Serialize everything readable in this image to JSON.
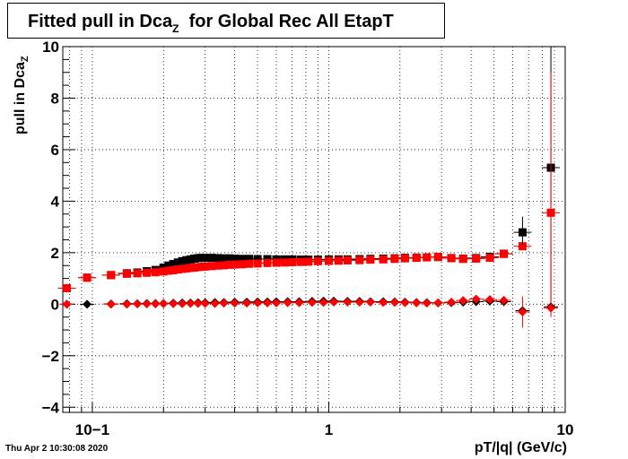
{
  "title": {
    "main": "Fitted pull in Dca",
    "sub": "Z",
    "rest": "for Global Rec All EtapT"
  },
  "timestamp": "Thu Apr  2 10:30:08 2020",
  "axes": {
    "ylabel_main": "pull in Dca",
    "ylabel_sub": "Z",
    "xlabel": "pT/|q| (GeV/c)"
  },
  "colors": {
    "series_black": "#000000",
    "series_red": "#ff0000",
    "grid": "#000000"
  },
  "chart_data": {
    "type": "scatter",
    "xscale": "log",
    "xlim": [
      0.075,
      10
    ],
    "ylim": [
      -4.2,
      10
    ],
    "grid": true,
    "xticks": [
      {
        "value": 0.1,
        "label": "10−1"
      },
      {
        "value": 1,
        "label": "1"
      },
      {
        "value": 10,
        "label": "10"
      }
    ],
    "yticks": [
      {
        "value": -4,
        "label": "−4"
      },
      {
        "value": -2,
        "label": "−2"
      },
      {
        "value": 0,
        "label": "0"
      },
      {
        "value": 2,
        "label": "2"
      },
      {
        "value": 4,
        "label": "4"
      },
      {
        "value": 6,
        "label": "6"
      },
      {
        "value": 8,
        "label": "8"
      },
      {
        "value": 10,
        "label": "10"
      }
    ],
    "series": [
      {
        "marker": "square",
        "color": "#000000",
        "points": [
          {
            "x": 0.078,
            "y": 0.62
          },
          {
            "x": 0.095,
            "y": 1.03
          },
          {
            "x": 0.12,
            "y": 1.13
          },
          {
            "x": 0.14,
            "y": 1.2
          },
          {
            "x": 0.155,
            "y": 1.23
          },
          {
            "x": 0.17,
            "y": 1.28
          },
          {
            "x": 0.185,
            "y": 1.33
          },
          {
            "x": 0.2,
            "y": 1.42
          },
          {
            "x": 0.21,
            "y": 1.5
          },
          {
            "x": 0.22,
            "y": 1.56
          },
          {
            "x": 0.23,
            "y": 1.62
          },
          {
            "x": 0.24,
            "y": 1.67
          },
          {
            "x": 0.25,
            "y": 1.71
          },
          {
            "x": 0.26,
            "y": 1.74
          },
          {
            "x": 0.27,
            "y": 1.77
          },
          {
            "x": 0.28,
            "y": 1.79
          },
          {
            "x": 0.29,
            "y": 1.8
          },
          {
            "x": 0.3,
            "y": 1.8
          },
          {
            "x": 0.32,
            "y": 1.8
          },
          {
            "x": 0.34,
            "y": 1.79
          },
          {
            "x": 0.36,
            "y": 1.78
          },
          {
            "x": 0.38,
            "y": 1.78
          },
          {
            "x": 0.4,
            "y": 1.77
          },
          {
            "x": 0.43,
            "y": 1.76
          },
          {
            "x": 0.46,
            "y": 1.76
          },
          {
            "x": 0.5,
            "y": 1.75
          },
          {
            "x": 0.55,
            "y": 1.75
          },
          {
            "x": 0.6,
            "y": 1.74
          },
          {
            "x": 0.65,
            "y": 1.74
          },
          {
            "x": 0.7,
            "y": 1.74
          },
          {
            "x": 0.76,
            "y": 1.73
          },
          {
            "x": 0.82,
            "y": 1.73
          },
          {
            "x": 0.9,
            "y": 1.73
          },
          {
            "x": 1.0,
            "y": 1.74
          },
          {
            "x": 1.1,
            "y": 1.74
          },
          {
            "x": 1.2,
            "y": 1.74
          },
          {
            "x": 1.35,
            "y": 1.75
          },
          {
            "x": 1.5,
            "y": 1.76
          },
          {
            "x": 1.7,
            "y": 1.77
          },
          {
            "x": 1.9,
            "y": 1.78
          },
          {
            "x": 2.1,
            "y": 1.8
          },
          {
            "x": 2.35,
            "y": 1.81
          },
          {
            "x": 2.6,
            "y": 1.82
          },
          {
            "x": 2.9,
            "y": 1.83
          },
          {
            "x": 3.3,
            "y": 1.79
          },
          {
            "x": 3.7,
            "y": 1.77
          },
          {
            "x": 4.2,
            "y": 1.79
          },
          {
            "x": 4.8,
            "y": 1.84
          },
          {
            "x": 5.5,
            "y": 1.96
          },
          {
            "x": 6.6,
            "y": 2.79
          },
          {
            "x": 8.7,
            "y": 5.3
          }
        ]
      },
      {
        "marker": "square",
        "color": "#ff0000",
        "points": [
          {
            "x": 0.078,
            "y": 0.62
          },
          {
            "x": 0.095,
            "y": 1.03
          },
          {
            "x": 0.12,
            "y": 1.13
          },
          {
            "x": 0.14,
            "y": 1.18
          },
          {
            "x": 0.155,
            "y": 1.2
          },
          {
            "x": 0.17,
            "y": 1.22
          },
          {
            "x": 0.185,
            "y": 1.24
          },
          {
            "x": 0.2,
            "y": 1.27
          },
          {
            "x": 0.21,
            "y": 1.3
          },
          {
            "x": 0.22,
            "y": 1.32
          },
          {
            "x": 0.23,
            "y": 1.35
          },
          {
            "x": 0.24,
            "y": 1.37
          },
          {
            "x": 0.25,
            "y": 1.39
          },
          {
            "x": 0.26,
            "y": 1.41
          },
          {
            "x": 0.27,
            "y": 1.42
          },
          {
            "x": 0.28,
            "y": 1.44
          },
          {
            "x": 0.29,
            "y": 1.45
          },
          {
            "x": 0.3,
            "y": 1.46
          },
          {
            "x": 0.32,
            "y": 1.48
          },
          {
            "x": 0.34,
            "y": 1.5
          },
          {
            "x": 0.36,
            "y": 1.51
          },
          {
            "x": 0.38,
            "y": 1.53
          },
          {
            "x": 0.4,
            "y": 1.54
          },
          {
            "x": 0.43,
            "y": 1.55
          },
          {
            "x": 0.46,
            "y": 1.57
          },
          {
            "x": 0.5,
            "y": 1.58
          },
          {
            "x": 0.55,
            "y": 1.6
          },
          {
            "x": 0.6,
            "y": 1.61
          },
          {
            "x": 0.65,
            "y": 1.62
          },
          {
            "x": 0.7,
            "y": 1.63
          },
          {
            "x": 0.76,
            "y": 1.64
          },
          {
            "x": 0.82,
            "y": 1.65
          },
          {
            "x": 0.9,
            "y": 1.67
          },
          {
            "x": 1.0,
            "y": 1.68
          },
          {
            "x": 1.1,
            "y": 1.69
          },
          {
            "x": 1.2,
            "y": 1.7
          },
          {
            "x": 1.35,
            "y": 1.71
          },
          {
            "x": 1.5,
            "y": 1.73
          },
          {
            "x": 1.7,
            "y": 1.74
          },
          {
            "x": 1.9,
            "y": 1.76
          },
          {
            "x": 2.1,
            "y": 1.78
          },
          {
            "x": 2.35,
            "y": 1.8
          },
          {
            "x": 2.6,
            "y": 1.82
          },
          {
            "x": 2.9,
            "y": 1.84
          },
          {
            "x": 3.3,
            "y": 1.79
          },
          {
            "x": 3.7,
            "y": 1.76
          },
          {
            "x": 4.2,
            "y": 1.77
          },
          {
            "x": 4.8,
            "y": 1.8
          },
          {
            "x": 5.5,
            "y": 1.95
          },
          {
            "x": 6.6,
            "y": 2.25
          },
          {
            "x": 8.7,
            "y": 3.55
          }
        ]
      },
      {
        "marker": "diamond",
        "color": "#000000",
        "points": [
          {
            "x": 0.078,
            "y": 0.0
          },
          {
            "x": 0.095,
            "y": 0.0
          },
          {
            "x": 0.12,
            "y": 0.01
          },
          {
            "x": 0.14,
            "y": 0.02
          },
          {
            "x": 0.155,
            "y": 0.02
          },
          {
            "x": 0.17,
            "y": 0.03
          },
          {
            "x": 0.185,
            "y": 0.03
          },
          {
            "x": 0.2,
            "y": 0.03
          },
          {
            "x": 0.22,
            "y": 0.04
          },
          {
            "x": 0.24,
            "y": 0.05
          },
          {
            "x": 0.26,
            "y": 0.05
          },
          {
            "x": 0.28,
            "y": 0.06
          },
          {
            "x": 0.3,
            "y": 0.06
          },
          {
            "x": 0.33,
            "y": 0.07
          },
          {
            "x": 0.36,
            "y": 0.07
          },
          {
            "x": 0.4,
            "y": 0.08
          },
          {
            "x": 0.45,
            "y": 0.08
          },
          {
            "x": 0.5,
            "y": 0.09
          },
          {
            "x": 0.55,
            "y": 0.09
          },
          {
            "x": 0.6,
            "y": 0.1
          },
          {
            "x": 0.67,
            "y": 0.1
          },
          {
            "x": 0.75,
            "y": 0.1
          },
          {
            "x": 0.85,
            "y": 0.11
          },
          {
            "x": 0.95,
            "y": 0.12
          },
          {
            "x": 1.05,
            "y": 0.12
          },
          {
            "x": 1.2,
            "y": 0.11
          },
          {
            "x": 1.35,
            "y": 0.11
          },
          {
            "x": 1.5,
            "y": 0.1
          },
          {
            "x": 1.7,
            "y": 0.1
          },
          {
            "x": 1.9,
            "y": 0.09
          },
          {
            "x": 2.1,
            "y": 0.08
          },
          {
            "x": 2.35,
            "y": 0.07
          },
          {
            "x": 2.6,
            "y": 0.06
          },
          {
            "x": 2.9,
            "y": 0.05
          },
          {
            "x": 3.3,
            "y": 0.06
          },
          {
            "x": 3.7,
            "y": 0.08
          },
          {
            "x": 4.2,
            "y": 0.1
          },
          {
            "x": 4.8,
            "y": 0.12
          },
          {
            "x": 5.5,
            "y": 0.1
          },
          {
            "x": 6.6,
            "y": -0.25
          },
          {
            "x": 8.7,
            "y": -0.1
          }
        ]
      },
      {
        "marker": "diamond",
        "color": "#ff0000",
        "points": [
          {
            "x": 0.078,
            "y": 0.0
          },
          {
            "x": 0.12,
            "y": 0.0
          },
          {
            "x": 0.14,
            "y": 0.0
          },
          {
            "x": 0.155,
            "y": 0.01
          },
          {
            "x": 0.17,
            "y": 0.01
          },
          {
            "x": 0.185,
            "y": 0.01
          },
          {
            "x": 0.2,
            "y": 0.02
          },
          {
            "x": 0.22,
            "y": 0.02
          },
          {
            "x": 0.24,
            "y": 0.02
          },
          {
            "x": 0.26,
            "y": 0.03
          },
          {
            "x": 0.28,
            "y": 0.03
          },
          {
            "x": 0.3,
            "y": 0.03
          },
          {
            "x": 0.33,
            "y": 0.03
          },
          {
            "x": 0.36,
            "y": 0.04
          },
          {
            "x": 0.4,
            "y": 0.04
          },
          {
            "x": 0.45,
            "y": 0.04
          },
          {
            "x": 0.5,
            "y": 0.05
          },
          {
            "x": 0.55,
            "y": 0.05
          },
          {
            "x": 0.6,
            "y": 0.05
          },
          {
            "x": 0.67,
            "y": 0.06
          },
          {
            "x": 0.75,
            "y": 0.06
          },
          {
            "x": 0.85,
            "y": 0.07
          },
          {
            "x": 0.95,
            "y": 0.07
          },
          {
            "x": 1.05,
            "y": 0.08
          },
          {
            "x": 1.2,
            "y": 0.08
          },
          {
            "x": 1.35,
            "y": 0.08
          },
          {
            "x": 1.5,
            "y": 0.08
          },
          {
            "x": 1.7,
            "y": 0.07
          },
          {
            "x": 1.9,
            "y": 0.07
          },
          {
            "x": 2.1,
            "y": 0.06
          },
          {
            "x": 2.35,
            "y": 0.05
          },
          {
            "x": 2.6,
            "y": 0.04
          },
          {
            "x": 2.9,
            "y": 0.05
          },
          {
            "x": 3.3,
            "y": 0.08
          },
          {
            "x": 3.7,
            "y": 0.14
          },
          {
            "x": 4.2,
            "y": 0.2
          },
          {
            "x": 4.8,
            "y": 0.18
          },
          {
            "x": 5.5,
            "y": 0.15
          },
          {
            "x": 6.6,
            "y": -0.3
          },
          {
            "x": 8.7,
            "y": -0.15
          }
        ]
      }
    ]
  }
}
